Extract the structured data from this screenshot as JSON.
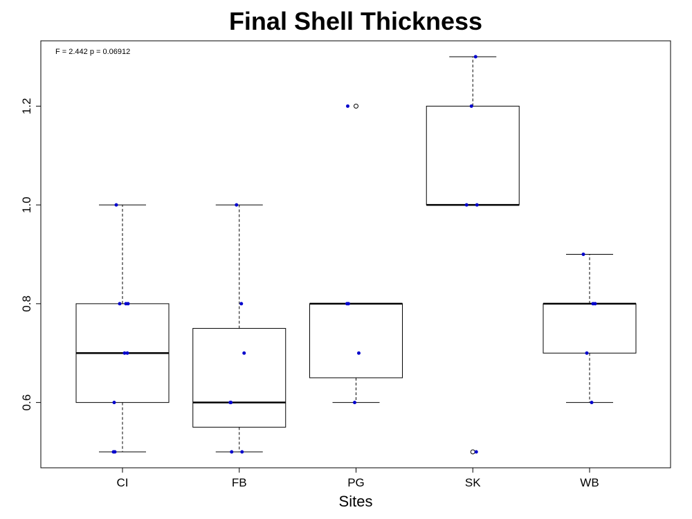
{
  "chart_data": {
    "type": "boxplot",
    "title": "Final Shell Thickness",
    "xlabel": "Sites",
    "ylabel": "",
    "annotation": "F = 2.442 p = 0.06912",
    "categories": [
      "CI",
      "FB",
      "PG",
      "SK",
      "WB"
    ],
    "ylim": [
      0.47,
      1.33
    ],
    "yticks": [
      0.6,
      0.8,
      1.0,
      1.2
    ],
    "ytick_labels": [
      "0.6",
      "0.8",
      "1.0",
      "1.2"
    ],
    "grid": false,
    "point_color": "#0000cc",
    "boxes": [
      {
        "category": "CI",
        "whisker_low": 0.5,
        "q1": 0.6,
        "median": 0.7,
        "q3": 0.8,
        "whisker_high": 1.0,
        "outliers": []
      },
      {
        "category": "FB",
        "whisker_low": 0.5,
        "q1": 0.55,
        "median": 0.6,
        "q3": 0.75,
        "whisker_high": 1.0,
        "outliers": []
      },
      {
        "category": "PG",
        "whisker_low": 0.6,
        "q1": 0.65,
        "median": 0.8,
        "q3": 0.8,
        "whisker_high": 0.8,
        "outliers": [
          1.2
        ]
      },
      {
        "category": "SK",
        "whisker_low": 1.0,
        "q1": 1.0,
        "median": 1.0,
        "q3": 1.2,
        "whisker_high": 1.3,
        "outliers": [
          0.5
        ]
      },
      {
        "category": "WB",
        "whisker_low": 0.6,
        "q1": 0.7,
        "median": 0.8,
        "q3": 0.8,
        "whisker_high": 0.9,
        "outliers": []
      }
    ],
    "points": [
      {
        "category": "CI",
        "values": [
          1.0,
          0.8,
          0.8,
          0.8,
          0.7,
          0.7,
          0.6,
          0.5,
          0.5
        ]
      },
      {
        "category": "FB",
        "values": [
          1.0,
          0.8,
          0.7,
          0.6,
          0.6,
          0.5,
          0.5
        ]
      },
      {
        "category": "PG",
        "values": [
          1.2,
          0.8,
          0.8,
          0.7,
          0.6
        ]
      },
      {
        "category": "SK",
        "values": [
          1.3,
          1.2,
          1.0,
          1.0,
          0.5
        ]
      },
      {
        "category": "WB",
        "values": [
          0.9,
          0.8,
          0.8,
          0.7,
          0.6
        ]
      }
    ]
  }
}
